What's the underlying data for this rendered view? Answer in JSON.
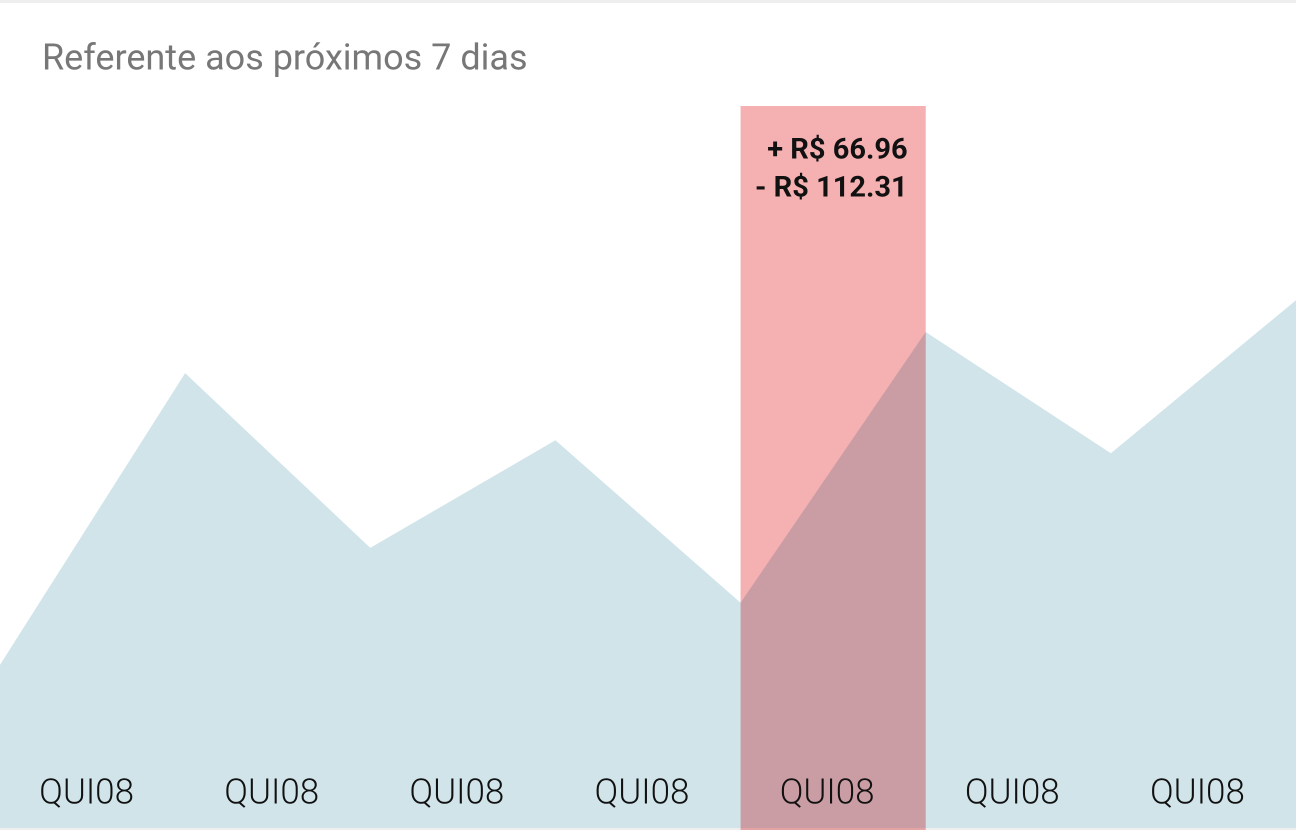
{
  "chart_data": {
    "type": "area",
    "title": "Referente aos próximos 7 dias",
    "x": [
      0,
      1,
      2,
      3,
      4,
      5,
      6,
      7
    ],
    "xlim": [
      0,
      7
    ],
    "values": [
      22.6,
      63,
      38.8,
      53.7,
      31.2,
      68.7,
      51.9,
      73.1
    ],
    "ylim": [
      0,
      100
    ],
    "color": "#d1e4ea",
    "categories": [
      "QUI08",
      "QUI08",
      "QUI08",
      "QUI08",
      "QUI08",
      "QUI08",
      "QUI08"
    ],
    "highlight": {
      "index": 4,
      "color": "#f5b0b2",
      "lines": [
        "+ R$ 66.96",
        "- R$ 112.31"
      ]
    }
  }
}
